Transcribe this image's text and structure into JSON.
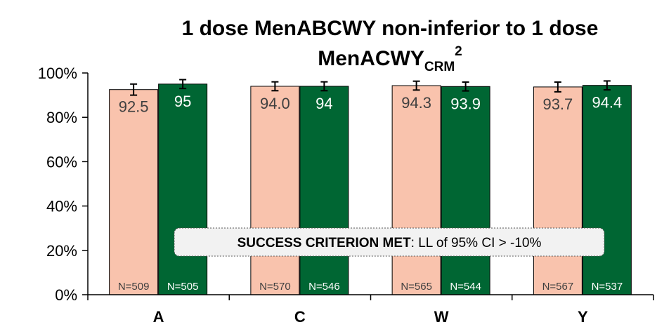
{
  "chart_data": {
    "type": "bar",
    "title": "1 dose MenABCWY non-inferior to 1 dose",
    "title_line2": {
      "text": "MenACWY",
      "subscript": "CRM",
      "superscript": "2"
    },
    "categories": [
      "A",
      "C",
      "W",
      "Y"
    ],
    "series": [
      {
        "color": "#f9c3ad",
        "label_color": "#404040",
        "values": [
          92.5,
          94.0,
          94.3,
          93.7
        ],
        "value_labels": [
          "92.5",
          "94.0",
          "94.3",
          "93.7"
        ],
        "errors": [
          2.5,
          2,
          2,
          2.2
        ],
        "n_labels": [
          "N=509",
          "N=570",
          "N=565",
          "N=567"
        ]
      },
      {
        "color": "#006633",
        "label_color": "#ffffff",
        "values": [
          95,
          94,
          93.9,
          94.4
        ],
        "value_labels": [
          "95",
          "94",
          "93.9",
          "94.4"
        ],
        "errors": [
          2,
          2,
          2,
          2
        ],
        "n_labels": [
          "N=505",
          "N=546",
          "N=544",
          "N=537"
        ]
      }
    ],
    "ylim": [
      0,
      100
    ],
    "yticks": [
      {
        "value": 0,
        "label": "0%"
      },
      {
        "value": 20,
        "label": "20%"
      },
      {
        "value": 40,
        "label": "40%"
      },
      {
        "value": 60,
        "label": "60%"
      },
      {
        "value": 80,
        "label": "80%"
      },
      {
        "value": 100,
        "label": "100%"
      }
    ],
    "annotation": {
      "bold": "SUCCESS CRITERION MET",
      "text": ": LL of 95% CI > -10%"
    }
  }
}
